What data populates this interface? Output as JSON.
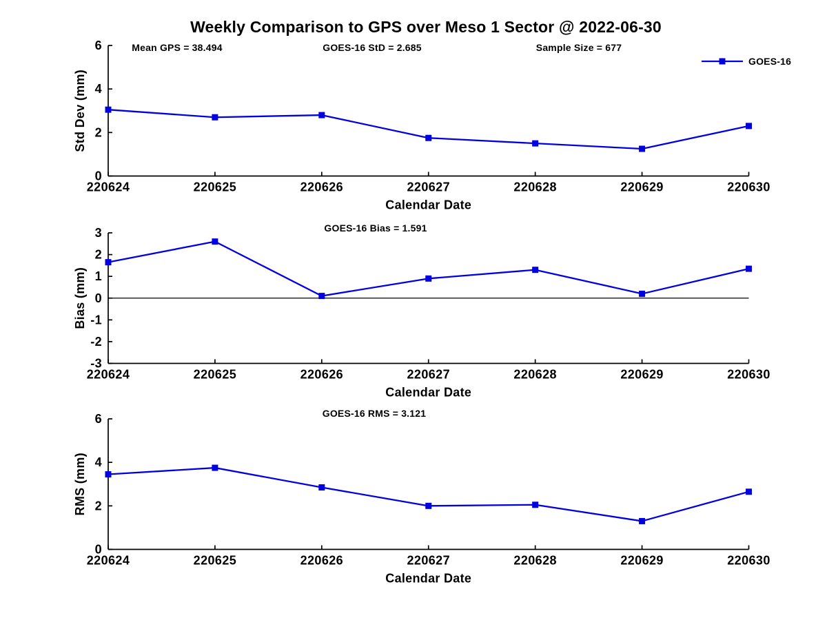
{
  "title": "Weekly Comparison to GPS over Meso 1 Sector @ 2022-06-30",
  "legend": {
    "label": "GOES-16"
  },
  "colors": {
    "series": "#0000e0",
    "axis": "#000000"
  },
  "chart_data": [
    {
      "type": "line",
      "name": "std-dev",
      "xlabel": "Calendar Date",
      "ylabel": "Std Dev (mm)",
      "ylim": [
        0,
        6
      ],
      "yticks": [
        "0",
        "2",
        "4",
        "6"
      ],
      "categories": [
        "220624",
        "220625",
        "220626",
        "220627",
        "220628",
        "220629",
        "220630"
      ],
      "series": [
        {
          "name": "GOES-16",
          "values": [
            3.05,
            2.7,
            2.8,
            1.75,
            1.5,
            1.25,
            2.3
          ]
        }
      ],
      "annotations": [
        {
          "text": "Mean GPS = 38.494"
        },
        {
          "text": "GOES-16 StD = 2.685"
        },
        {
          "text": "Sample Size = 677"
        }
      ],
      "legend_entries": [
        "GOES-16"
      ],
      "legend_position": "top-right",
      "grid": false,
      "zero_line": false
    },
    {
      "type": "line",
      "name": "bias",
      "xlabel": "Calendar Date",
      "ylabel": "Bias (mm)",
      "ylim": [
        -3,
        3
      ],
      "yticks": [
        "-3",
        "-2",
        "-1",
        "0",
        "1",
        "2",
        "3"
      ],
      "categories": [
        "220624",
        "220625",
        "220626",
        "220627",
        "220628",
        "220629",
        "220630"
      ],
      "series": [
        {
          "name": "GOES-16",
          "values": [
            1.65,
            2.6,
            0.1,
            0.9,
            1.3,
            0.2,
            1.35
          ]
        }
      ],
      "annotations": [
        {
          "text": "GOES-16 Bias  = 1.591"
        }
      ],
      "grid": false,
      "zero_line": true
    },
    {
      "type": "line",
      "name": "rms",
      "xlabel": "Calendar Date",
      "ylabel": "RMS (mm)",
      "ylim": [
        0,
        6
      ],
      "yticks": [
        "0",
        "2",
        "4",
        "6"
      ],
      "categories": [
        "220624",
        "220625",
        "220626",
        "220627",
        "220628",
        "220629",
        "220630"
      ],
      "series": [
        {
          "name": "GOES-16",
          "values": [
            3.45,
            3.75,
            2.85,
            2.0,
            2.05,
            1.3,
            2.65
          ]
        }
      ],
      "annotations": [
        {
          "text": "GOES-16 RMS = 3.121"
        }
      ],
      "grid": false,
      "zero_line": false
    }
  ]
}
